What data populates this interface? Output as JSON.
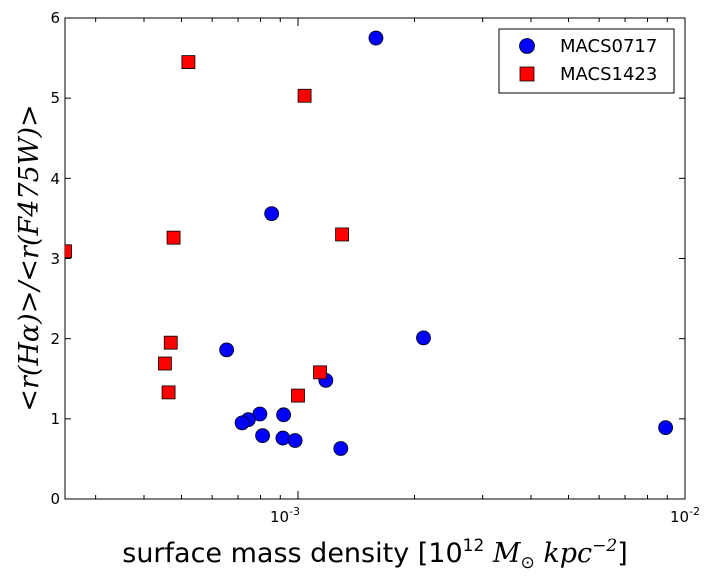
{
  "chart_data": {
    "type": "scatter",
    "xscale": "log",
    "xlim": [
      0.00025,
      0.01
    ],
    "ylim": [
      0,
      6
    ],
    "y_ticks": [
      "0",
      "1",
      "2",
      "3",
      "4",
      "5",
      "6"
    ],
    "x_ticks": [
      {
        "value": 0.001,
        "base": "10",
        "exp": "-3"
      },
      {
        "value": 0.01,
        "base": "10",
        "exp": "-2"
      }
    ],
    "xlabel": {
      "prefix": "surface mass density [10",
      "exp1": "12",
      "m": " M",
      "sun": "⊙",
      "kpc": " kpc",
      "exp2": "−2",
      "suffix": "]"
    },
    "ylabel": "<r(Hα)>/<r(F475W)>",
    "legend": {
      "position": "top-right",
      "entries": [
        "MACS0717",
        "MACS1423"
      ]
    },
    "series": [
      {
        "name": "MACS0717",
        "marker": "circle",
        "color": "#0000ff",
        "points": [
          {
            "x": 0.00159,
            "y": 5.75
          },
          {
            "x": 0.000855,
            "y": 3.56
          },
          {
            "x": 0.00211,
            "y": 2.01
          },
          {
            "x": 0.000654,
            "y": 1.86
          },
          {
            "x": 0.00118,
            "y": 1.48
          },
          {
            "x": 0.000797,
            "y": 1.06
          },
          {
            "x": 0.000918,
            "y": 1.05
          },
          {
            "x": 0.000744,
            "y": 0.99
          },
          {
            "x": 0.000717,
            "y": 0.95
          },
          {
            "x": 0.00081,
            "y": 0.79
          },
          {
            "x": 0.000914,
            "y": 0.76
          },
          {
            "x": 0.000983,
            "y": 0.73
          },
          {
            "x": 0.00129,
            "y": 0.63
          },
          {
            "x": 0.00891,
            "y": 0.89
          }
        ]
      },
      {
        "name": "MACS1423",
        "marker": "square",
        "color": "#ff0000",
        "points": [
          {
            "x": 0.000521,
            "y": 5.45
          },
          {
            "x": 0.00104,
            "y": 5.03
          },
          {
            "x": 0.000477,
            "y": 3.26
          },
          {
            "x": 0.0013,
            "y": 3.3
          },
          {
            "x": 0.00025,
            "y": 3.09
          },
          {
            "x": 0.000469,
            "y": 1.95
          },
          {
            "x": 0.000453,
            "y": 1.69
          },
          {
            "x": 0.000463,
            "y": 1.33
          },
          {
            "x": 0.00114,
            "y": 1.58
          },
          {
            "x": 0.001,
            "y": 1.29
          }
        ]
      }
    ]
  }
}
